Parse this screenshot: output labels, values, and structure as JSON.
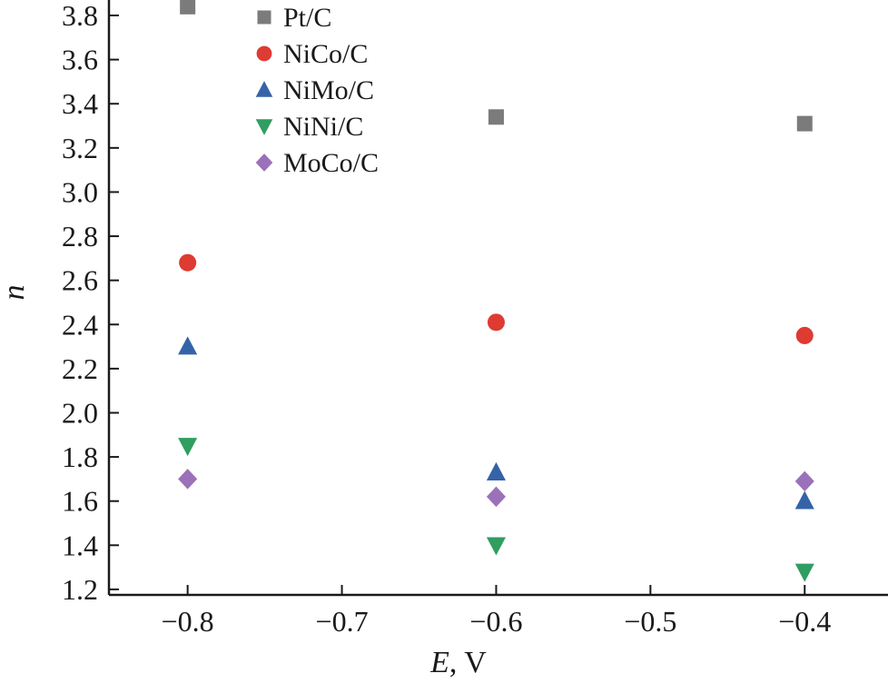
{
  "chart_data": {
    "type": "scatter",
    "title": "",
    "xlabel_italic": "E",
    "xlabel_rest": ", V",
    "ylabel": "n",
    "xlim": [
      -0.851,
      -0.346
    ],
    "ylim": [
      1.175,
      3.87
    ],
    "xticks": [
      -0.8,
      -0.7,
      -0.6,
      -0.5,
      -0.4
    ],
    "yticks": [
      1.2,
      1.4,
      1.6,
      1.8,
      2.0,
      2.2,
      2.4,
      2.6,
      2.8,
      3.0,
      3.2,
      3.4,
      3.6,
      3.8
    ],
    "grid": false,
    "legend_position": "upper-left-inside",
    "axis_color": "#1a1a1a",
    "series": [
      {
        "name": "Pt/C",
        "marker": "square",
        "color": "#7b7b7b",
        "x": [
          -0.8,
          -0.6,
          -0.4
        ],
        "y": [
          3.84,
          3.34,
          3.31
        ]
      },
      {
        "name": "NiCo/C",
        "marker": "circle",
        "color": "#de3b33",
        "x": [
          -0.8,
          -0.6,
          -0.4
        ],
        "y": [
          2.68,
          2.41,
          2.35
        ]
      },
      {
        "name": "NiMo/C",
        "marker": "triangle-up",
        "color": "#3563a8",
        "x": [
          -0.8,
          -0.6,
          -0.4
        ],
        "y": [
          2.3,
          1.73,
          1.6
        ]
      },
      {
        "name": "NiNi/C",
        "marker": "triangle-down",
        "color": "#2f9e60",
        "x": [
          -0.8,
          -0.6,
          -0.4
        ],
        "y": [
          1.85,
          1.4,
          1.28
        ]
      },
      {
        "name": "MoCo/C",
        "marker": "diamond",
        "color": "#9b71b9",
        "x": [
          -0.8,
          -0.6,
          -0.4
        ],
        "y": [
          1.7,
          1.62,
          1.69
        ]
      }
    ]
  }
}
